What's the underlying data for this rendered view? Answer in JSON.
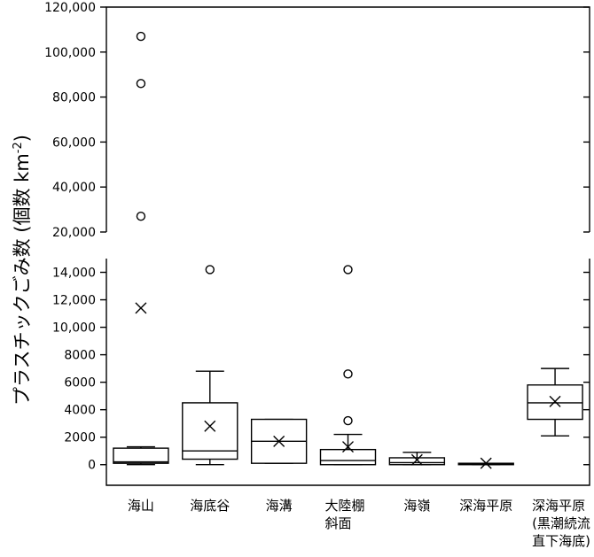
{
  "chart_data": {
    "type": "box",
    "ylabel": "プラスチックごみ数 (個数 km",
    "ylabel_sup": "-2",
    "ylabel_close": ")",
    "categories": [
      [
        "海山"
      ],
      [
        "海底谷"
      ],
      [
        "海溝"
      ],
      [
        "大陸棚",
        "斜面"
      ],
      [
        "海嶺"
      ],
      [
        "深海平原"
      ],
      [
        "深海平原",
        "(黒潮続流",
        "直下海底)"
      ]
    ],
    "axis_break": true,
    "upper_panel": {
      "ylim": [
        20000,
        120000
      ],
      "ticks": [
        "20,000",
        "40,000",
        "60,000",
        "80,000",
        "100,000",
        "120,000"
      ],
      "tick_values": [
        20000,
        40000,
        60000,
        80000,
        100000,
        120000
      ]
    },
    "lower_panel": {
      "ylim": [
        -1500,
        15000
      ],
      "ticks": [
        "0",
        "2000",
        "4000",
        "6000",
        "8000",
        "10,000",
        "12,000",
        "14,000"
      ],
      "tick_values": [
        0,
        2000,
        4000,
        6000,
        8000,
        10000,
        12000,
        14000
      ]
    },
    "boxes": [
      {
        "q1": 100,
        "median": 200,
        "q3": 1200,
        "whisker_low": 0,
        "whisker_high": 1300,
        "mean": 11400,
        "outliers": [
          27000,
          86000,
          107000
        ]
      },
      {
        "q1": 400,
        "median": 1000,
        "q3": 4500,
        "whisker_low": 0,
        "whisker_high": 6800,
        "mean": 2800,
        "outliers": [
          14200
        ]
      },
      {
        "q1": 100,
        "median": 1700,
        "q3": 3300,
        "whisker_low": 100,
        "whisker_high": 3300,
        "mean": 1700,
        "outliers": []
      },
      {
        "q1": 0,
        "median": 300,
        "q3": 1100,
        "whisker_low": 0,
        "whisker_high": 2200,
        "mean": 1300,
        "outliers": [
          3200,
          6600,
          14200
        ]
      },
      {
        "q1": 0,
        "median": 150,
        "q3": 500,
        "whisker_low": 0,
        "whisker_high": 900,
        "mean": 350,
        "outliers": []
      },
      {
        "q1": 0,
        "median": 50,
        "q3": 100,
        "whisker_low": 0,
        "whisker_high": 100,
        "mean": 100,
        "outliers": []
      },
      {
        "q1": 3300,
        "median": 4500,
        "q3": 5800,
        "whisker_low": 2100,
        "whisker_high": 7000,
        "mean": 4600,
        "outliers": []
      }
    ]
  }
}
